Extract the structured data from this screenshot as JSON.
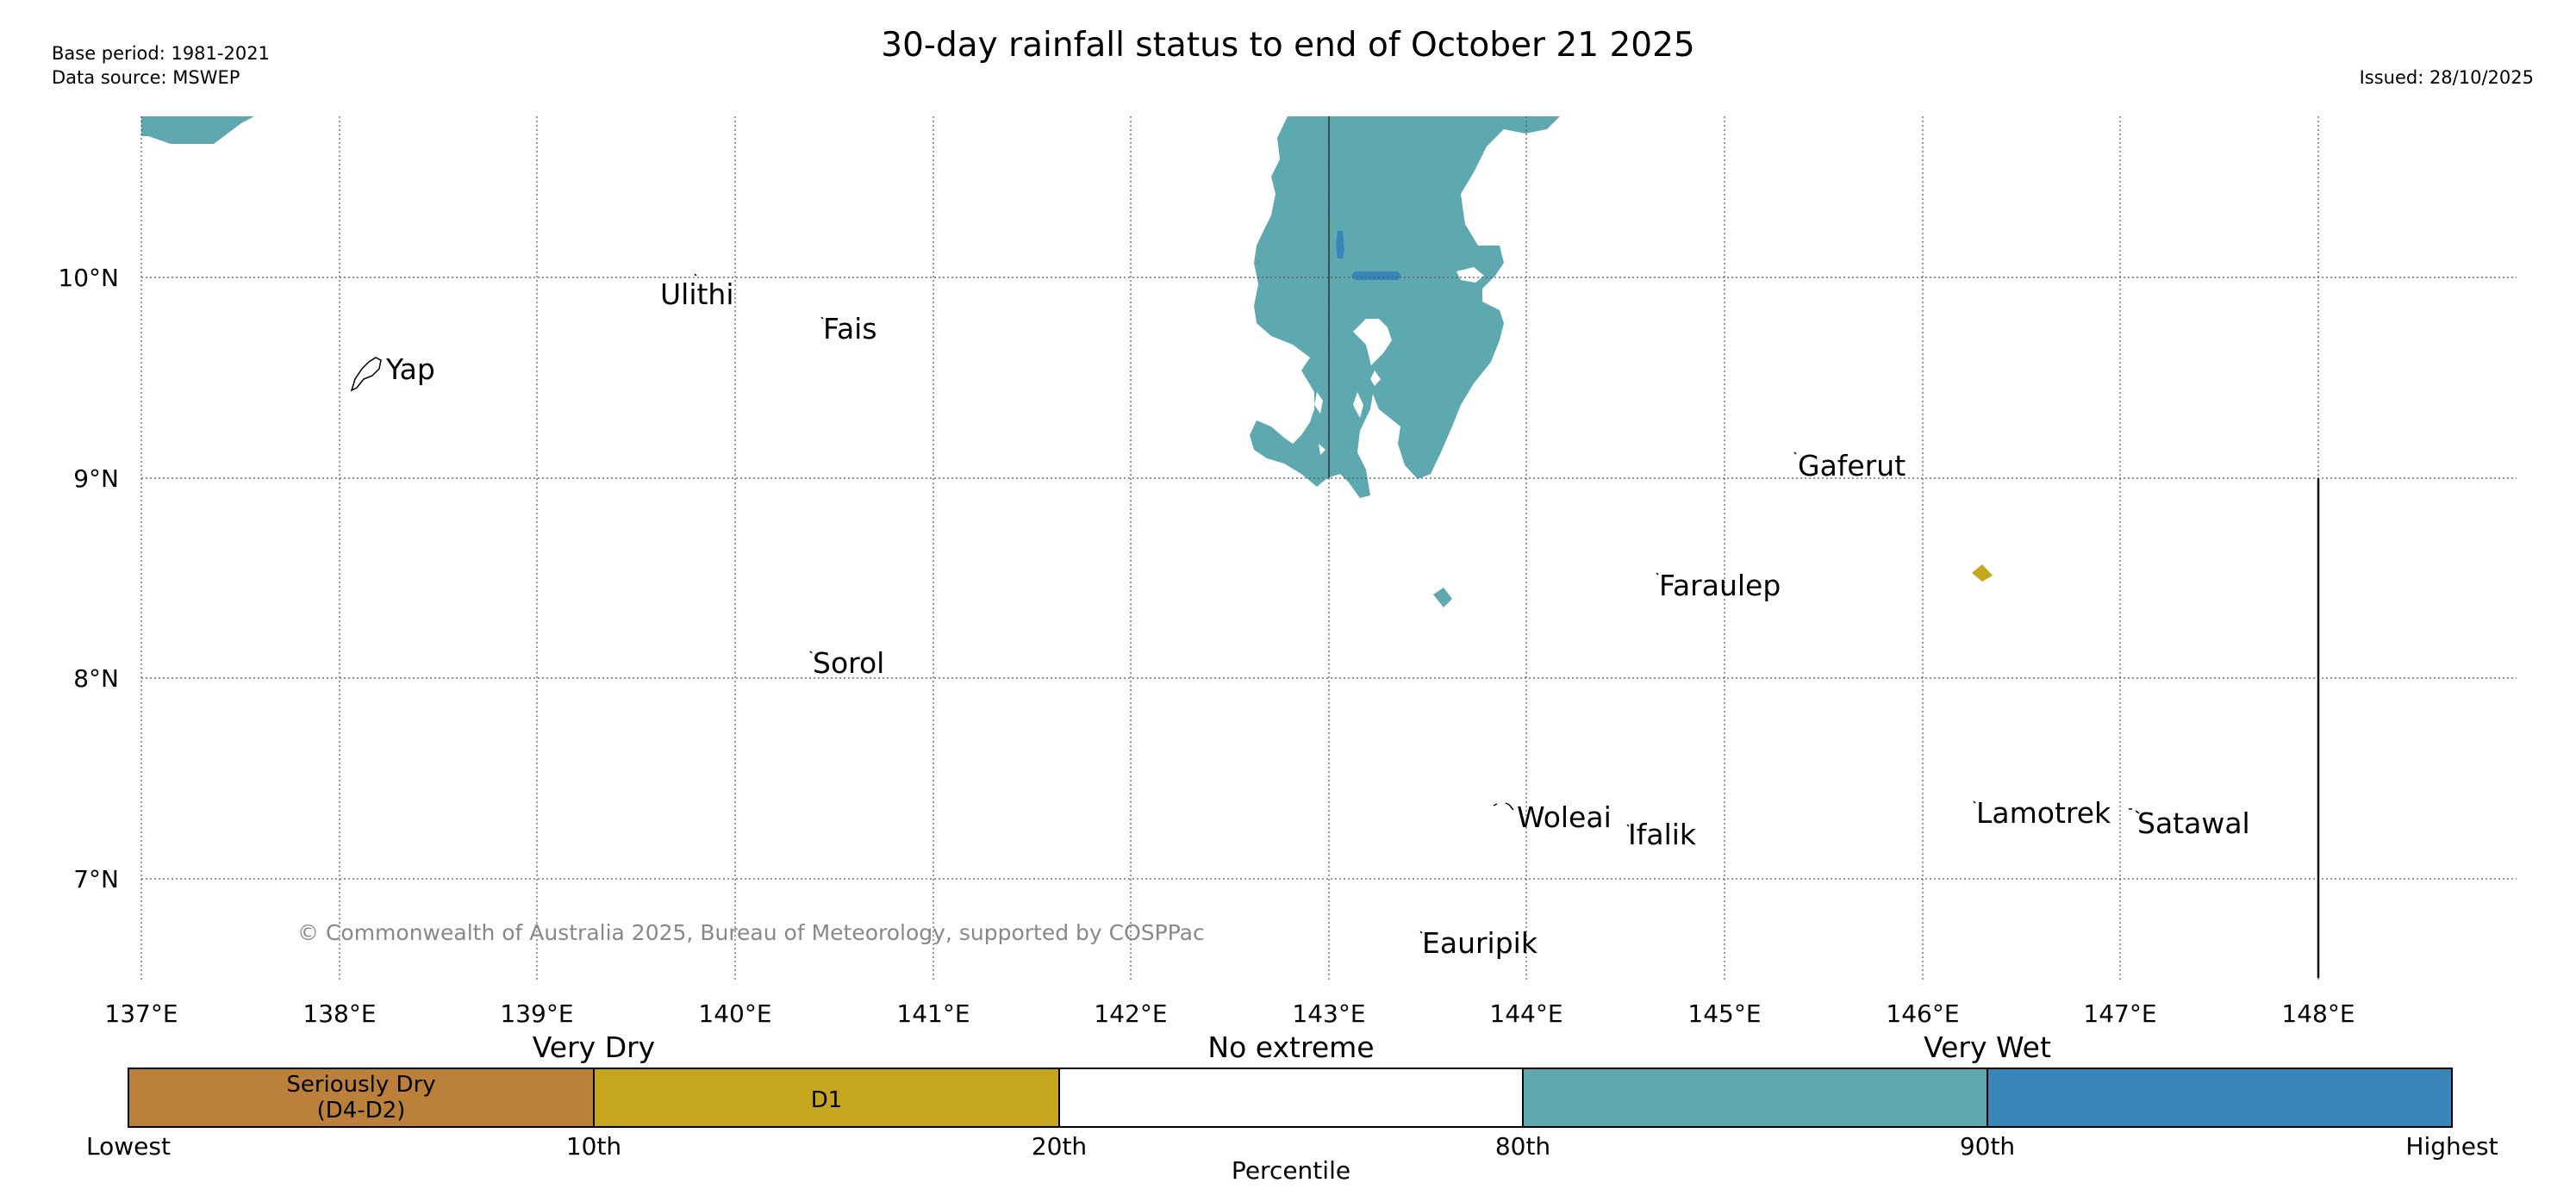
{
  "header": {
    "title": "30-day rainfall status to end of October 21 2025",
    "base_period": "Base period: 1981-2021",
    "data_source": "Data source: MSWEP",
    "issued": "Issued: 28/10/2025"
  },
  "map": {
    "lon_labels": [
      "137°E",
      "138°E",
      "139°E",
      "140°E",
      "141°E",
      "142°E",
      "143°E",
      "144°E",
      "145°E",
      "146°E",
      "147°E",
      "148°E"
    ],
    "lat_labels": [
      "10°N",
      "9°N",
      "8°N",
      "7°N"
    ],
    "places": [
      "Ulithi",
      "Fais",
      "Yap",
      "Gaferut",
      "Faraulep",
      "Sorol",
      "Woleai",
      "Ifalik",
      "Lamotrek",
      "Satawal",
      "Eauripik"
    ],
    "copyright": "© Commonwealth of Australia 2025, Bureau of Meteorology, supported by COSPPac"
  },
  "legend": {
    "categories": [
      "Very Dry",
      "No extreme",
      "Very Wet"
    ],
    "boxes": [
      {
        "line1": "Seriously Dry",
        "line2": "(D4-D2)",
        "color": "#bb803a"
      },
      {
        "line1": "D1",
        "line2": "",
        "color": "#c6a61d"
      },
      {
        "line1": "",
        "line2": "",
        "color": "#ffffff"
      },
      {
        "line1": "",
        "line2": "",
        "color": "#5ea9af"
      },
      {
        "line1": "",
        "line2": "",
        "color": "#3986ba"
      }
    ],
    "ticks": [
      "Lowest",
      "10th",
      "20th",
      "80th",
      "90th",
      "Highest"
    ],
    "axis_label": "Percentile"
  },
  "colors": {
    "very_wet": "#5ea9af",
    "highest": "#3986ba",
    "d1": "#c6a61d",
    "seriously_dry": "#bb803a"
  }
}
